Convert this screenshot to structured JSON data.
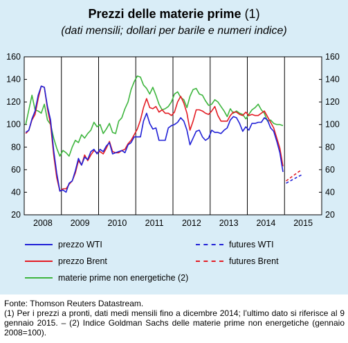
{
  "title": {
    "main": "Prezzi delle materie prime",
    "ref": "(1)",
    "subtitle": "(dati mensili; dollari per barile e numeri indice)"
  },
  "footer": {
    "source": "Fonte: Thomson Reuters Datastream.",
    "note": "(1) Per i prezzi a pronti, dati medi mensili fino a dicembre 2014; l’ultimo dato si riferisce al 9 gennaio 2015. – (2) Indice Goldman Sachs delle materie prime non energetiche (gennaio 2008=100)."
  },
  "colors": {
    "wti": "#1f1fd6",
    "brent": "#e31b23",
    "non_energy": "#3db53d",
    "panel_bg": "#d9edf7"
  },
  "chart_data": {
    "type": "line",
    "x_start": "2008-01",
    "x_end": "2015-12",
    "xaxis_labels": [
      "2008",
      "2009",
      "2010",
      "2011",
      "2012",
      "2013",
      "2014",
      "2015"
    ],
    "ylim": [
      20,
      160
    ],
    "yticks": [
      20,
      40,
      60,
      80,
      100,
      120,
      140,
      160
    ],
    "grid": "vertical lines at year boundaries",
    "series": [
      {
        "key": "wti",
        "name": "prezzo WTI",
        "style": "solid",
        "values": [
          93,
          95,
          105,
          112,
          126,
          134,
          133,
          116,
          104,
          77,
          57,
          41,
          42,
          40,
          48,
          50,
          59,
          70,
          64,
          71,
          69,
          76,
          78,
          74,
          78,
          76,
          81,
          84,
          74,
          75,
          76,
          77,
          75,
          82,
          84,
          89,
          89,
          89,
          103,
          110,
          101,
          96,
          97,
          86,
          86,
          86,
          97,
          99,
          100,
          102,
          106,
          103,
          95,
          82,
          88,
          94,
          95,
          89,
          86,
          88,
          95,
          93,
          93,
          92,
          95,
          97,
          104,
          107,
          106,
          101,
          94,
          98,
          95,
          101,
          101,
          102,
          102,
          106,
          104,
          97,
          94,
          85,
          75,
          58
        ]
      },
      {
        "key": "brent",
        "name": "prezzo Brent",
        "style": "solid",
        "values": [
          92,
          95,
          104,
          109,
          123,
          134,
          133,
          114,
          100,
          73,
          53,
          41,
          43,
          43,
          47,
          50,
          57,
          68,
          64,
          73,
          68,
          73,
          77,
          75,
          76,
          74,
          79,
          85,
          76,
          75,
          75,
          77,
          78,
          83,
          86,
          91,
          96,
          104,
          115,
          123,
          115,
          114,
          116,
          111,
          113,
          110,
          110,
          108,
          111,
          120,
          125,
          119,
          110,
          95,
          103,
          113,
          113,
          112,
          110,
          109,
          112,
          116,
          108,
          103,
          103,
          103,
          108,
          111,
          111,
          109,
          108,
          111,
          108,
          109,
          108,
          108,
          110,
          112,
          107,
          102,
          97,
          88,
          79,
          63
        ]
      },
      {
        "key": "non_energy",
        "name": "materie prime non energetiche (2)",
        "style": "solid",
        "values": [
          100,
          113,
          126,
          113,
          112,
          110,
          118,
          104,
          100,
          88,
          79,
          72,
          77,
          75,
          72,
          80,
          86,
          84,
          91,
          88,
          92,
          95,
          102,
          98,
          100,
          92,
          96,
          101,
          93,
          92,
          103,
          106,
          114,
          120,
          131,
          138,
          143,
          142,
          135,
          132,
          127,
          133,
          126,
          118,
          113,
          114,
          116,
          120,
          127,
          129,
          124,
          122,
          115,
          125,
          131,
          132,
          127,
          126,
          121,
          117,
          118,
          122,
          120,
          116,
          112,
          107,
          114,
          110,
          112,
          110,
          109,
          105,
          109,
          113,
          115,
          118,
          113,
          110,
          103,
          104,
          101,
          100,
          100,
          99
        ]
      },
      {
        "key": "futures_wti",
        "name": "futures WTI",
        "style": "dashed",
        "values_x_start_index": 84,
        "values": [
          48,
          49.5,
          51,
          52.5,
          54,
          55.3
        ]
      },
      {
        "key": "futures_brent",
        "name": "futures Brent",
        "style": "dashed",
        "values_x_start_index": 84,
        "values": [
          50,
          52,
          54,
          56,
          58,
          59.8
        ]
      }
    ]
  }
}
